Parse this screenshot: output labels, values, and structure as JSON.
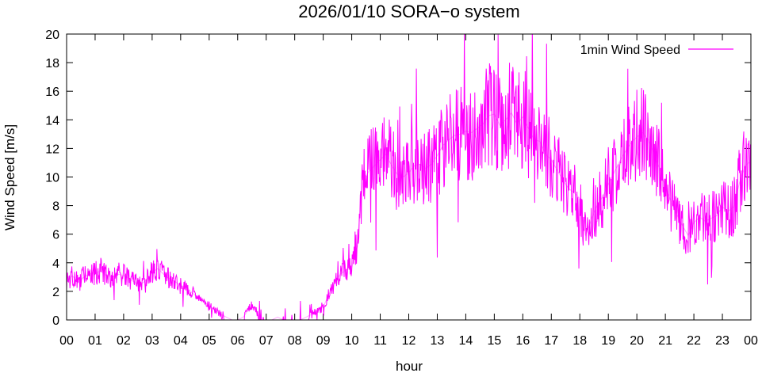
{
  "chart_data": {
    "type": "line",
    "title": "2026/01/10 SORA−o system",
    "xlabel": "hour",
    "ylabel": "Wind Speed [m/s]",
    "xlim": [
      0,
      24
    ],
    "ylim": [
      0,
      20
    ],
    "x_tick_labels": [
      "00",
      "01",
      "02",
      "03",
      "04",
      "05",
      "06",
      "07",
      "08",
      "09",
      "10",
      "11",
      "12",
      "13",
      "14",
      "15",
      "16",
      "17",
      "18",
      "19",
      "20",
      "21",
      "22",
      "23",
      "00"
    ],
    "y_ticks": [
      0,
      2,
      4,
      6,
      8,
      10,
      12,
      14,
      16,
      18,
      20
    ],
    "grid": false,
    "legend_position": "top-right",
    "series": [
      {
        "name": "1min Wind Speed",
        "color": "#ff00ff",
        "x": [
          0.0,
          0.2,
          0.4,
          0.6,
          0.8,
          1.0,
          1.2,
          1.4,
          1.6,
          1.8,
          2.0,
          2.2,
          2.4,
          2.6,
          2.8,
          3.0,
          3.2,
          3.4,
          3.6,
          3.8,
          4.0,
          4.2,
          4.4,
          4.6,
          4.8,
          5.0,
          5.2,
          5.4,
          5.6,
          5.8,
          6.0,
          6.2,
          6.4,
          6.6,
          6.8,
          7.0,
          7.2,
          7.4,
          7.6,
          7.8,
          8.0,
          8.2,
          8.4,
          8.6,
          8.8,
          9.0,
          9.2,
          9.4,
          9.6,
          9.8,
          10.0,
          10.2,
          10.4,
          10.6,
          10.8,
          11.0,
          11.2,
          11.4,
          11.6,
          11.8,
          12.0,
          12.2,
          12.4,
          12.6,
          12.8,
          13.0,
          13.2,
          13.4,
          13.6,
          13.8,
          14.0,
          14.2,
          14.4,
          14.6,
          14.8,
          15.0,
          15.2,
          15.4,
          15.6,
          15.8,
          16.0,
          16.2,
          16.4,
          16.6,
          16.8,
          17.0,
          17.2,
          17.4,
          17.6,
          17.8,
          18.0,
          18.2,
          18.4,
          18.6,
          18.8,
          19.0,
          19.2,
          19.4,
          19.6,
          19.8,
          20.0,
          20.2,
          20.4,
          20.6,
          20.8,
          21.0,
          21.2,
          21.4,
          21.6,
          21.8,
          22.0,
          22.2,
          22.4,
          22.6,
          22.8,
          23.0,
          23.2,
          23.4,
          23.6,
          23.8,
          24.0
        ],
        "y": [
          2.7,
          3.1,
          2.6,
          3.0,
          3.2,
          3.3,
          3.4,
          3.1,
          3.0,
          3.2,
          3.1,
          2.9,
          2.6,
          2.5,
          2.8,
          3.3,
          3.6,
          3.2,
          2.9,
          2.7,
          2.4,
          2.3,
          1.9,
          1.6,
          1.3,
          1.0,
          0.7,
          0.4,
          0.2,
          0.0,
          0.0,
          0.2,
          0.8,
          0.9,
          0.0,
          0.0,
          0.0,
          0.2,
          0.0,
          0.0,
          0.0,
          0.0,
          0.2,
          0.4,
          0.6,
          0.9,
          1.8,
          2.6,
          3.2,
          3.5,
          3.6,
          5.5,
          9.8,
          10.4,
          10.8,
          11.2,
          11.6,
          10.8,
          10.2,
          10.0,
          10.3,
          10.8,
          10.9,
          10.6,
          10.9,
          11.5,
          12.2,
          12.6,
          12.9,
          13.0,
          13.2,
          13.1,
          13.4,
          13.7,
          14.3,
          14.4,
          13.6,
          14.0,
          14.5,
          13.7,
          14.2,
          13.4,
          12.6,
          12.5,
          11.6,
          11.2,
          10.5,
          9.8,
          9.2,
          8.9,
          8.5,
          5.9,
          7.0,
          8.0,
          8.6,
          9.5,
          10.3,
          11.1,
          11.8,
          12.4,
          12.8,
          13.1,
          12.6,
          11.7,
          10.6,
          9.3,
          8.3,
          7.4,
          6.6,
          5.9,
          6.8,
          7.2,
          6.9,
          7.1,
          7.3,
          7.9,
          7.6,
          7.9,
          9.6,
          10.8,
          11.1
        ]
      }
    ]
  }
}
